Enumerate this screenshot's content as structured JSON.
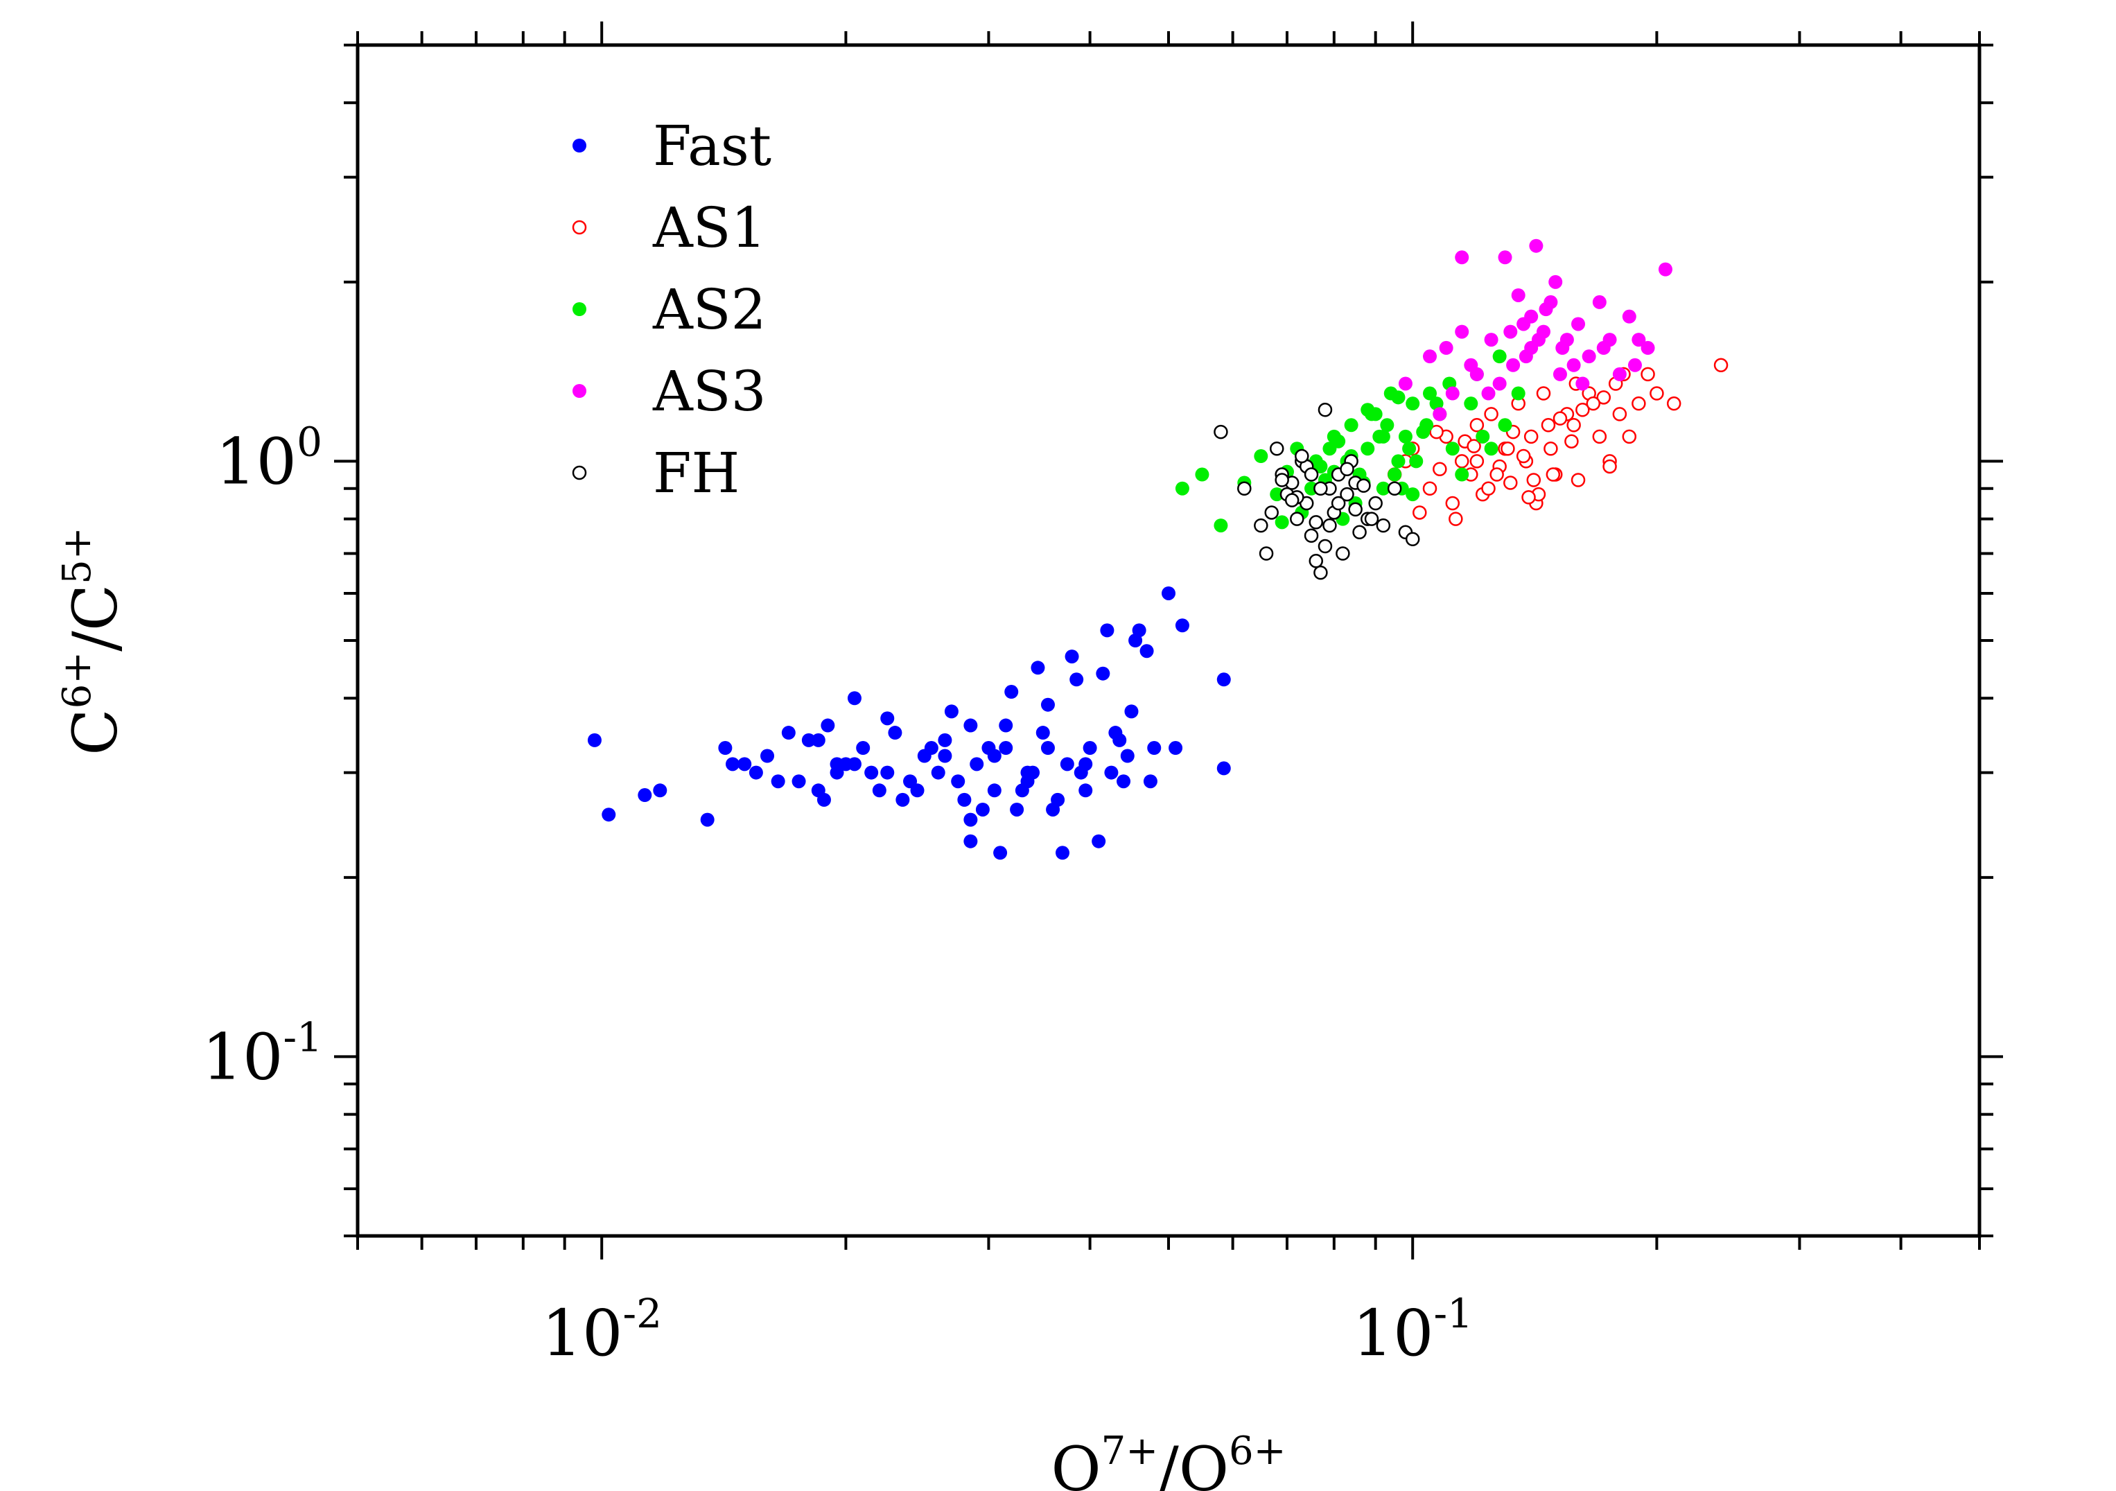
{
  "chart_data": {
    "type": "scatter",
    "title": "",
    "xscale": "log",
    "yscale": "log",
    "xlim": [
      0.005,
      0.5
    ],
    "ylim": [
      0.05,
      5
    ],
    "xlabel": {
      "base": "O",
      "sup": "7+",
      "sep": "/",
      "base2": "O",
      "sup2": "6+"
    },
    "ylabel": {
      "base": "C",
      "sup": "6+",
      "sep": "/",
      "base2": "C",
      "sup2": "5+"
    },
    "xticks": [
      {
        "value": 0.01,
        "base": "10",
        "exp": "-2"
      },
      {
        "value": 0.1,
        "base": "10",
        "exp": "-1"
      }
    ],
    "yticks": [
      {
        "value": 0.1,
        "base": "10",
        "exp": "-1"
      },
      {
        "value": 1,
        "base": "10",
        "exp": "0"
      }
    ],
    "legend_position": "top-left",
    "series": [
      {
        "name": "Fast",
        "color": "#0000ff",
        "filled": true,
        "x": [
          0.0098,
          0.0102,
          0.0113,
          0.0118,
          0.0135,
          0.0142,
          0.0145,
          0.0155,
          0.016,
          0.017,
          0.0175,
          0.018,
          0.0188,
          0.019,
          0.0195,
          0.02,
          0.0205,
          0.021,
          0.022,
          0.0225,
          0.023,
          0.024,
          0.025,
          0.026,
          0.027,
          0.028,
          0.0285,
          0.029,
          0.03,
          0.031,
          0.032,
          0.033,
          0.034,
          0.035,
          0.036,
          0.037,
          0.038,
          0.039,
          0.04,
          0.041,
          0.042,
          0.043,
          0.044,
          0.045,
          0.046,
          0.047,
          0.048,
          0.05,
          0.051,
          0.052,
          0.0585,
          0.0585,
          0.015,
          0.0165,
          0.0185,
          0.0215,
          0.0235,
          0.0255,
          0.0275,
          0.0295,
          0.0315,
          0.0335,
          0.0355,
          0.0375,
          0.0395,
          0.0415,
          0.0435,
          0.0455,
          0.0475,
          0.0265,
          0.0305,
          0.0345,
          0.0365,
          0.0385,
          0.0245,
          0.0225,
          0.0205,
          0.0325,
          0.0355,
          0.0285,
          0.0395,
          0.0425,
          0.0445,
          0.0185,
          0.0195,
          0.0265,
          0.0305,
          0.0335,
          0.0285,
          0.0315
        ],
        "y": [
          0.34,
          0.255,
          0.275,
          0.28,
          0.25,
          0.33,
          0.31,
          0.3,
          0.32,
          0.35,
          0.29,
          0.34,
          0.27,
          0.36,
          0.3,
          0.31,
          0.4,
          0.33,
          0.28,
          0.3,
          0.35,
          0.29,
          0.32,
          0.3,
          0.38,
          0.27,
          0.23,
          0.31,
          0.33,
          0.22,
          0.41,
          0.28,
          0.3,
          0.35,
          0.26,
          0.22,
          0.47,
          0.3,
          0.33,
          0.23,
          0.52,
          0.35,
          0.29,
          0.38,
          0.52,
          0.48,
          0.33,
          0.6,
          0.33,
          0.53,
          0.43,
          0.305,
          0.31,
          0.29,
          0.34,
          0.3,
          0.27,
          0.33,
          0.29,
          0.26,
          0.36,
          0.29,
          0.33,
          0.31,
          0.28,
          0.44,
          0.34,
          0.5,
          0.29,
          0.32,
          0.32,
          0.45,
          0.27,
          0.43,
          0.28,
          0.37,
          0.31,
          0.26,
          0.39,
          0.25,
          0.31,
          0.3,
          0.32,
          0.28,
          0.31,
          0.34,
          0.28,
          0.3,
          0.36,
          0.33
        ]
      },
      {
        "name": "AS1",
        "color": "#ff0000",
        "filled": false,
        "x": [
          0.095,
          0.1,
          0.105,
          0.11,
          0.112,
          0.115,
          0.118,
          0.12,
          0.122,
          0.125,
          0.128,
          0.13,
          0.132,
          0.135,
          0.138,
          0.14,
          0.142,
          0.145,
          0.148,
          0.15,
          0.155,
          0.158,
          0.16,
          0.165,
          0.17,
          0.175,
          0.178,
          0.18,
          0.185,
          0.19,
          0.195,
          0.2,
          0.21,
          0.24,
          0.098,
          0.108,
          0.116,
          0.124,
          0.133,
          0.143,
          0.152,
          0.162,
          0.172,
          0.182,
          0.137,
          0.127,
          0.119,
          0.147,
          0.157,
          0.167,
          0.107,
          0.113,
          0.139,
          0.149,
          0.159,
          0.175,
          0.102,
          0.12,
          0.131,
          0.141
        ],
        "y": [
          0.95,
          1.05,
          0.9,
          1.1,
          0.85,
          1.0,
          0.95,
          1.15,
          0.88,
          1.2,
          0.98,
          1.05,
          0.92,
          1.25,
          1.0,
          1.1,
          0.85,
          1.3,
          1.05,
          0.95,
          1.2,
          1.15,
          0.93,
          1.3,
          1.1,
          1.0,
          1.35,
          1.2,
          1.1,
          1.25,
          1.4,
          1.3,
          1.25,
          1.45,
          1.0,
          0.97,
          1.08,
          0.9,
          1.12,
          0.88,
          1.18,
          1.22,
          1.28,
          1.4,
          1.02,
          0.95,
          1.06,
          1.15,
          1.08,
          1.25,
          1.12,
          0.8,
          0.87,
          0.95,
          1.35,
          0.98,
          0.82,
          1.0,
          1.05,
          0.93
        ]
      },
      {
        "name": "AS2",
        "color": "#00ee00",
        "filled": true,
        "x": [
          0.052,
          0.055,
          0.058,
          0.062,
          0.065,
          0.068,
          0.07,
          0.072,
          0.074,
          0.076,
          0.078,
          0.08,
          0.082,
          0.084,
          0.086,
          0.088,
          0.09,
          0.092,
          0.094,
          0.096,
          0.098,
          0.1,
          0.104,
          0.108,
          0.112,
          0.118,
          0.122,
          0.128,
          0.135,
          0.075,
          0.079,
          0.083,
          0.087,
          0.091,
          0.095,
          0.099,
          0.103,
          0.107,
          0.111,
          0.077,
          0.081,
          0.085,
          0.089,
          0.093,
          0.097,
          0.101,
          0.105,
          0.073,
          0.071,
          0.069,
          0.115,
          0.12,
          0.125,
          0.13,
          0.088,
          0.092,
          0.096,
          0.084,
          0.08,
          0.1
        ],
        "y": [
          0.9,
          0.95,
          0.78,
          0.92,
          1.02,
          0.88,
          0.96,
          1.05,
          0.85,
          1.0,
          0.93,
          1.1,
          0.8,
          1.15,
          0.95,
          1.05,
          1.2,
          0.9,
          1.3,
          1.0,
          1.1,
          1.25,
          1.15,
          1.2,
          1.05,
          1.25,
          1.1,
          1.5,
          1.3,
          0.9,
          1.05,
          1.0,
          0.92,
          1.1,
          0.95,
          1.05,
          1.12,
          1.25,
          1.35,
          0.98,
          1.08,
          0.85,
          1.2,
          1.15,
          0.9,
          1.0,
          1.3,
          0.82,
          0.86,
          0.79,
          0.95,
          1.4,
          1.05,
          1.15,
          1.22,
          1.1,
          1.28,
          1.02,
          0.96,
          0.88
        ]
      },
      {
        "name": "AS3",
        "color": "#ff00ff",
        "filled": true,
        "x": [
          0.105,
          0.11,
          0.115,
          0.12,
          0.125,
          0.13,
          0.133,
          0.135,
          0.137,
          0.14,
          0.142,
          0.145,
          0.148,
          0.15,
          0.153,
          0.155,
          0.158,
          0.16,
          0.165,
          0.17,
          0.175,
          0.18,
          0.185,
          0.19,
          0.195,
          0.205,
          0.112,
          0.118,
          0.128,
          0.138,
          0.143,
          0.152,
          0.108,
          0.124,
          0.132,
          0.146,
          0.162,
          0.172,
          0.188,
          0.115,
          0.14,
          0.098
        ],
        "y": [
          1.5,
          1.55,
          2.2,
          1.4,
          1.6,
          2.2,
          1.45,
          1.9,
          1.7,
          1.75,
          2.3,
          1.65,
          1.85,
          2.0,
          1.55,
          1.6,
          1.45,
          1.7,
          1.5,
          1.85,
          1.6,
          1.4,
          1.75,
          1.6,
          1.55,
          2.1,
          1.3,
          1.45,
          1.35,
          1.5,
          1.6,
          1.4,
          1.2,
          1.3,
          1.65,
          1.8,
          1.35,
          1.55,
          1.45,
          1.65,
          1.55,
          1.35
        ]
      },
      {
        "name": "FH",
        "color": "#000000",
        "filled": false,
        "x": [
          0.058,
          0.062,
          0.065,
          0.066,
          0.067,
          0.068,
          0.069,
          0.07,
          0.071,
          0.072,
          0.073,
          0.074,
          0.075,
          0.076,
          0.077,
          0.078,
          0.079,
          0.08,
          0.081,
          0.082,
          0.083,
          0.084,
          0.085,
          0.086,
          0.088,
          0.09,
          0.092,
          0.095,
          0.098,
          0.1,
          0.072,
          0.074,
          0.076,
          0.078,
          0.069,
          0.073,
          0.077,
          0.081,
          0.085,
          0.089,
          0.075,
          0.079,
          0.071,
          0.087,
          0.083
        ],
        "y": [
          1.12,
          0.9,
          0.78,
          0.7,
          0.82,
          1.05,
          0.95,
          0.88,
          0.92,
          0.8,
          1.0,
          0.85,
          0.75,
          0.68,
          0.65,
          1.22,
          0.9,
          0.82,
          0.95,
          0.7,
          0.88,
          1.0,
          0.92,
          0.76,
          0.8,
          0.85,
          0.78,
          0.9,
          0.76,
          0.74,
          0.87,
          0.98,
          0.79,
          0.72,
          0.93,
          1.02,
          0.9,
          0.85,
          0.83,
          0.8,
          0.95,
          0.78,
          0.86,
          0.91,
          0.97
        ]
      }
    ]
  }
}
